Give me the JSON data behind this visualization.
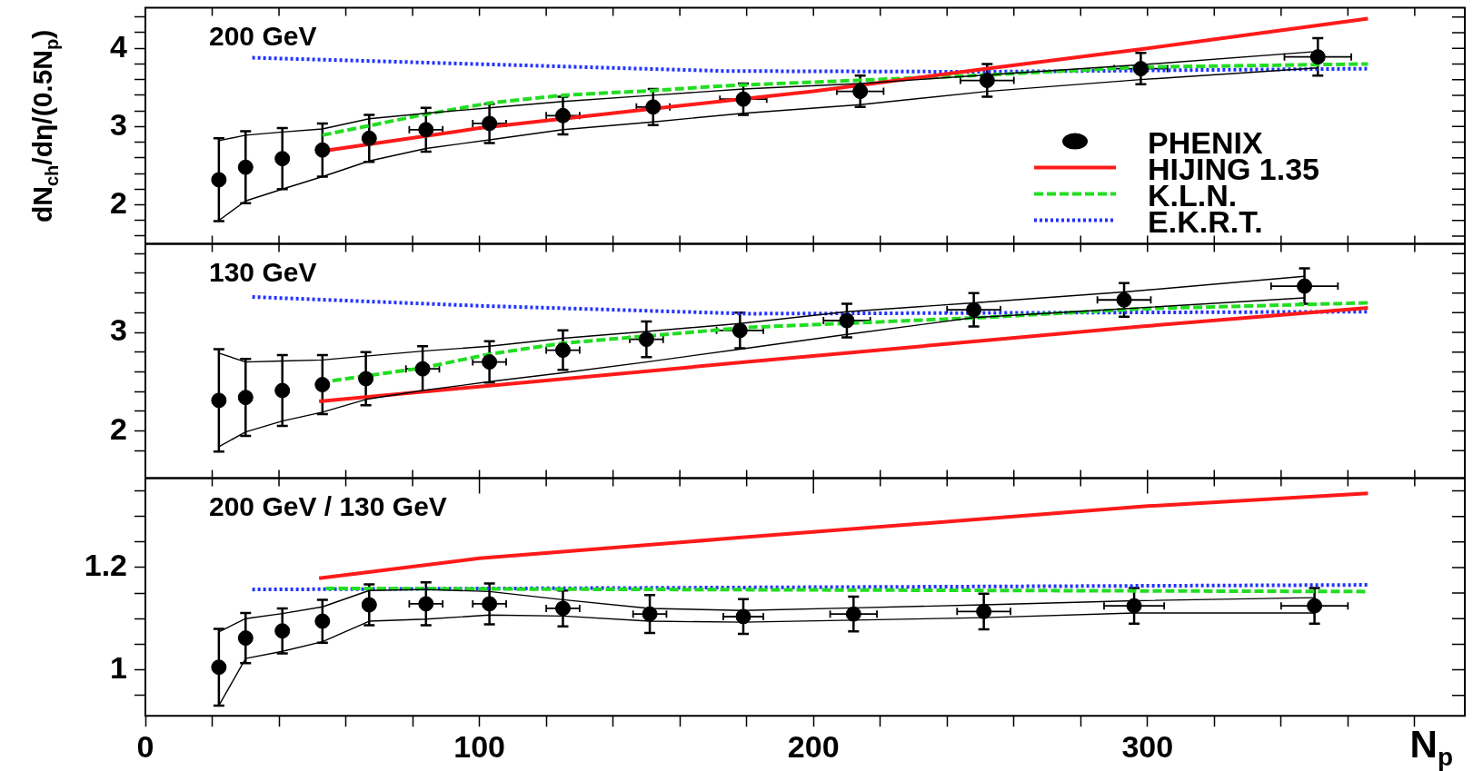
{
  "chart_data": [
    {
      "type": "scatter",
      "title": "200 GeV",
      "ylabel": "dN$_{ch}$/dη/(0.5N$_{p}$)",
      "xlim": [
        0,
        395
      ],
      "ylim": [
        1.5,
        4.52
      ],
      "tick_labels": "y",
      "legend": "bottom right",
      "x": [
        22,
        30,
        41,
        53,
        67,
        84,
        103,
        125,
        152,
        179,
        214,
        252,
        298,
        351
      ],
      "xticks": [
        {
          "value": 0,
          "label": null
        },
        {
          "value": 20,
          "label": null
        },
        {
          "value": 40,
          "label": null
        },
        {
          "value": 60,
          "label": null
        },
        {
          "value": 80,
          "label": null
        },
        {
          "value": 100,
          "label": null
        },
        {
          "value": 120,
          "label": null
        },
        {
          "value": 140,
          "label": null
        },
        {
          "value": 160,
          "label": null
        },
        {
          "value": 180,
          "label": null
        },
        {
          "value": 200,
          "label": null
        },
        {
          "value": 220,
          "label": null
        },
        {
          "value": 240,
          "label": null
        },
        {
          "value": 260,
          "label": null
        },
        {
          "value": 280,
          "label": null
        },
        {
          "value": 300,
          "label": null
        },
        {
          "value": 320,
          "label": null
        },
        {
          "value": 340,
          "label": null
        },
        {
          "value": 360,
          "label": null
        },
        {
          "value": 380,
          "label": null
        }
      ],
      "yticks": [
        {
          "value": 1.6,
          "label": null
        },
        {
          "value": 1.8,
          "label": null
        },
        2,
        {
          "value": 2.2,
          "label": null
        },
        {
          "value": 2.4,
          "label": null
        },
        {
          "value": 2.6,
          "label": null
        },
        {
          "value": 2.8,
          "label": null
        },
        3,
        {
          "value": 3.2,
          "label": null
        },
        {
          "value": 3.4,
          "label": null
        },
        {
          "value": 3.6,
          "label": null
        },
        {
          "value": 3.8,
          "label": null
        },
        4,
        {
          "value": 4.2,
          "label": null
        },
        {
          "value": 4.4,
          "label": null
        }
      ],
      "series": [
        {
          "type": "line",
          "line_style": "solid",
          "color": "#000000",
          "values": [
            2.82,
            2.89,
            2.93,
            2.97,
            3.1,
            3.17,
            3.24,
            3.32,
            3.4,
            3.48,
            3.55,
            3.66,
            3.79,
            3.96
          ]
        },
        {
          "type": "line",
          "line_style": "solid",
          "color": "#000000",
          "values": [
            1.8,
            2.05,
            2.2,
            2.36,
            2.56,
            2.72,
            2.83,
            2.96,
            3.06,
            3.17,
            3.28,
            3.45,
            3.6,
            3.75
          ]
        },
        {
          "name": "PHENIX",
          "type": "scatter",
          "marker": "circle",
          "color": "#000000",
          "values": [
            2.32,
            2.48,
            2.59,
            2.7,
            2.85,
            2.96,
            3.04,
            3.14,
            3.25,
            3.35,
            3.45,
            3.59,
            3.74,
            3.89
          ],
          "errors": [
            0.53,
            0.46,
            0.39,
            0.34,
            0.3,
            0.28,
            0.25,
            0.24,
            0.23,
            0.2,
            0.2,
            0.21,
            0.2,
            0.24
          ],
          "xerrors": [
            null,
            null,
            null,
            null,
            null,
            5,
            5,
            5,
            5,
            7,
            7,
            8,
            8,
            10
          ]
        },
        {
          "name": "HIJING 1.35",
          "type": "line",
          "line_style": "solid",
          "color": "#ff1a1a",
          "x": [
            55,
            100,
            150,
            200,
            250,
            300,
            366
          ],
          "values": [
            2.7,
            2.98,
            3.22,
            3.45,
            3.73,
            4.0,
            4.38
          ]
        },
        {
          "name": "K.L.N.",
          "type": "line",
          "line_style": "dashed",
          "color": "#22dd22",
          "x": [
            53,
            83,
            103,
            125,
            152,
            173,
            252,
            298,
            366
          ],
          "values": [
            2.89,
            3.15,
            3.3,
            3.4,
            3.46,
            3.52,
            3.66,
            3.76,
            3.8
          ]
        },
        {
          "name": "E.K.R.T.",
          "type": "line",
          "line_style": "dotted",
          "color": "#2233ff",
          "x": [
            32,
            173,
            250,
            366
          ],
          "values": [
            3.88,
            3.71,
            3.7,
            3.74
          ]
        }
      ]
    },
    {
      "type": "scatter",
      "title": "130 GeV",
      "xlim": [
        0,
        395
      ],
      "ylim": [
        1.52,
        3.9
      ],
      "tick_labels": "y",
      "x": [
        22,
        30,
        41,
        53,
        66,
        83,
        103,
        125,
        150,
        178,
        210,
        248,
        293,
        347
      ],
      "xticks": [
        {
          "value": 0,
          "label": null
        },
        {
          "value": 20,
          "label": null
        },
        {
          "value": 40,
          "label": null
        },
        {
          "value": 60,
          "label": null
        },
        {
          "value": 80,
          "label": null
        },
        {
          "value": 100,
          "label": null
        },
        {
          "value": 120,
          "label": null
        },
        {
          "value": 140,
          "label": null
        },
        {
          "value": 160,
          "label": null
        },
        {
          "value": 180,
          "label": null
        },
        {
          "value": 200,
          "label": null
        },
        {
          "value": 220,
          "label": null
        },
        {
          "value": 240,
          "label": null
        },
        {
          "value": 260,
          "label": null
        },
        {
          "value": 280,
          "label": null
        },
        {
          "value": 300,
          "label": null
        },
        {
          "value": 320,
          "label": null
        },
        {
          "value": 340,
          "label": null
        },
        {
          "value": 360,
          "label": null
        },
        {
          "value": 380,
          "label": null
        }
      ],
      "yticks": [
        {
          "value": 1.8,
          "label": null
        },
        2,
        {
          "value": 2.2,
          "label": null
        },
        {
          "value": 2.4,
          "label": null
        },
        {
          "value": 2.6,
          "label": null
        },
        {
          "value": 2.8,
          "label": null
        },
        3,
        {
          "value": 3.2,
          "label": null
        },
        {
          "value": 3.4,
          "label": null
        },
        {
          "value": 3.6,
          "label": null
        },
        {
          "value": 3.8,
          "label": null
        }
      ],
      "series": [
        {
          "type": "line",
          "line_style": "solid",
          "color": "#000000",
          "values": [
            2.79,
            2.7,
            2.71,
            2.72,
            2.76,
            2.81,
            2.86,
            2.94,
            3.01,
            3.09,
            3.21,
            3.3,
            3.41,
            3.57
          ]
        },
        {
          "type": "line",
          "line_style": "solid",
          "color": "#000000",
          "values": [
            1.84,
            1.99,
            2.1,
            2.19,
            2.32,
            2.41,
            2.5,
            2.59,
            2.7,
            2.83,
            2.98,
            3.15,
            3.24,
            3.35
          ]
        },
        {
          "type": "scatter",
          "marker": "circle",
          "color": "#000000",
          "values": [
            2.31,
            2.34,
            2.41,
            2.47,
            2.53,
            2.63,
            2.7,
            2.82,
            2.93,
            3.02,
            3.12,
            3.23,
            3.33,
            3.47
          ],
          "errors": [
            0.52,
            0.39,
            0.36,
            0.3,
            0.27,
            0.23,
            0.21,
            0.2,
            0.18,
            0.18,
            0.17,
            0.17,
            0.17,
            0.18
          ],
          "xerrors": [
            null,
            null,
            null,
            null,
            null,
            5,
            5,
            5,
            5,
            7,
            7,
            8,
            8,
            10
          ]
        },
        {
          "type": "line",
          "line_style": "solid",
          "color": "#ff1a1a",
          "x": [
            52,
            100,
            180,
            298,
            366
          ],
          "values": [
            2.3,
            2.45,
            2.7,
            3.06,
            3.25
          ]
        },
        {
          "type": "line",
          "line_style": "dashed",
          "color": "#22dd22",
          "x": [
            56,
            83,
            103,
            125,
            180,
            250,
            298,
            366
          ],
          "values": [
            2.51,
            2.64,
            2.78,
            2.89,
            3.05,
            3.15,
            3.24,
            3.3
          ]
        },
        {
          "type": "line",
          "line_style": "dotted",
          "color": "#2233ff",
          "x": [
            32,
            100,
            180,
            366
          ],
          "values": [
            3.36,
            3.27,
            3.19,
            3.21
          ]
        }
      ]
    },
    {
      "type": "scatter",
      "title": "200 GeV / 130 GeV",
      "xlabel": "N$_{p}$",
      "xlim": [
        0,
        395
      ],
      "ylim": [
        0.91,
        1.375
      ],
      "x": [
        22,
        30,
        41,
        53,
        67,
        84,
        103,
        125,
        151,
        179,
        212,
        251,
        296,
        350
      ],
      "xticks": [
        0,
        {
          "value": 20,
          "label": null
        },
        {
          "value": 40,
          "label": null
        },
        {
          "value": 60,
          "label": null
        },
        {
          "value": 80,
          "label": null
        },
        100,
        {
          "value": 120,
          "label": null
        },
        {
          "value": 140,
          "label": null
        },
        {
          "value": 160,
          "label": null
        },
        {
          "value": 180,
          "label": null
        },
        200,
        {
          "value": 220,
          "label": null
        },
        {
          "value": 240,
          "label": null
        },
        {
          "value": 260,
          "label": null
        },
        {
          "value": 280,
          "label": null
        },
        300,
        {
          "value": 320,
          "label": null
        },
        {
          "value": 340,
          "label": null
        },
        {
          "value": 360,
          "label": null
        },
        {
          "value": 380,
          "label": null
        }
      ],
      "yticks": [
        {
          "value": 0.95,
          "label": null
        },
        1,
        {
          "value": 1.05,
          "label": null
        },
        {
          "value": 1.1,
          "label": null
        },
        {
          "value": 1.15,
          "label": null
        },
        1.2,
        {
          "value": 1.25,
          "label": null
        },
        {
          "value": 1.3,
          "label": null
        },
        {
          "value": 1.35,
          "label": null
        }
      ],
      "series": [
        {
          "type": "line",
          "line_style": "solid",
          "color": "#000000",
          "values": [
            1.074,
            1.1,
            1.11,
            1.123,
            1.155,
            1.157,
            1.153,
            1.137,
            1.12,
            1.116,
            1.121,
            1.127,
            1.135,
            1.141
          ]
        },
        {
          "type": "line",
          "line_style": "solid",
          "color": "#000000",
          "values": [
            0.93,
            1.022,
            1.036,
            1.055,
            1.095,
            1.099,
            1.107,
            1.105,
            1.095,
            1.093,
            1.097,
            1.102,
            1.111,
            1.111
          ]
        },
        {
          "type": "scatter",
          "marker": "circle",
          "color": "#000000",
          "values": [
            1.005,
            1.062,
            1.076,
            1.095,
            1.127,
            1.129,
            1.129,
            1.12,
            1.109,
            1.104,
            1.109,
            1.114,
            1.125,
            1.125
          ],
          "errors": [
            0.075,
            0.049,
            0.044,
            0.042,
            0.04,
            0.042,
            0.04,
            0.035,
            0.037,
            0.034,
            0.034,
            0.035,
            0.035,
            0.035
          ],
          "xerrors": [
            null,
            null,
            null,
            null,
            null,
            5,
            5,
            5,
            5,
            6,
            7,
            8,
            9,
            10
          ]
        },
        {
          "type": "line",
          "line_style": "solid",
          "color": "#ff1a1a",
          "x": [
            52,
            100,
            175,
            300,
            366
          ],
          "values": [
            1.179,
            1.218,
            1.257,
            1.32,
            1.345
          ]
        },
        {
          "type": "line",
          "line_style": "dashed",
          "color": "#22dd22",
          "x": [
            54,
            366
          ],
          "values": [
            1.159,
            1.153
          ]
        },
        {
          "type": "line",
          "line_style": "dotted",
          "color": "#2233ff",
          "x": [
            32,
            366
          ],
          "values": [
            1.157,
            1.166
          ]
        }
      ]
    }
  ]
}
